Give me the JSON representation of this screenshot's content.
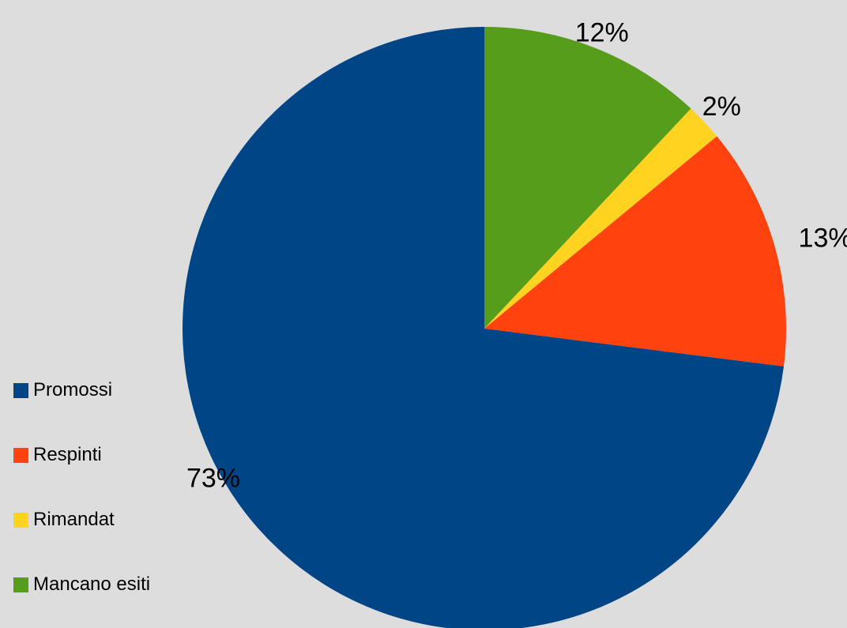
{
  "background": "#dddddd",
  "chart_data": {
    "type": "pie",
    "title": "",
    "start_angle": "top",
    "direction": "clockwise",
    "slices": [
      {
        "label": "Mancano esiti",
        "value": 12,
        "value_label": "12%",
        "color": "#579d1c"
      },
      {
        "label": "Rimandat",
        "value": 2,
        "value_label": "2%",
        "color": "#ffd320"
      },
      {
        "label": "Respinti",
        "value": 13,
        "value_label": "13%",
        "color": "#ff420e"
      },
      {
        "label": "Promossi",
        "value": 73,
        "value_label": "73%",
        "color": "#004586"
      }
    ],
    "legend": {
      "placement": "left-bottom",
      "items": [
        {
          "label": "Promossi",
          "color": "#004586"
        },
        {
          "label": "Respinti",
          "color": "#ff420e"
        },
        {
          "label": "Rimandat",
          "color": "#ffd320"
        },
        {
          "label": "Mancano esiti",
          "color": "#579d1c"
        }
      ]
    }
  }
}
